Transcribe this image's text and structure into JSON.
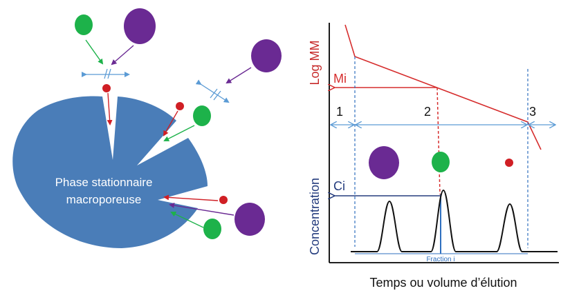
{
  "left_panel": {
    "pore_label_line1": "Phase stationnaire",
    "pore_label_line2": "macroporeuse"
  },
  "right_panel": {
    "y_axis_top_label": "Log MM",
    "y_axis_bottom_label": "Concentration",
    "mi_label": "Mi",
    "ci_label": "Ci",
    "region_labels": [
      "1",
      "2",
      "3"
    ],
    "fraction_label": "Fraction i",
    "x_axis_label": "Temps ou volume d’élution"
  },
  "colors": {
    "pore_blue": "#4a7db8",
    "small_molecule_red": "#d01f25",
    "medium_molecule_green": "#1db24a",
    "large_molecule_purple": "#6a2a93",
    "log_mm_red": "#d62d2d",
    "concentration_navy": "#233b7d",
    "region_arrow_blue": "#5b9bd5",
    "fraction_blue": "#2e6fbf"
  }
}
